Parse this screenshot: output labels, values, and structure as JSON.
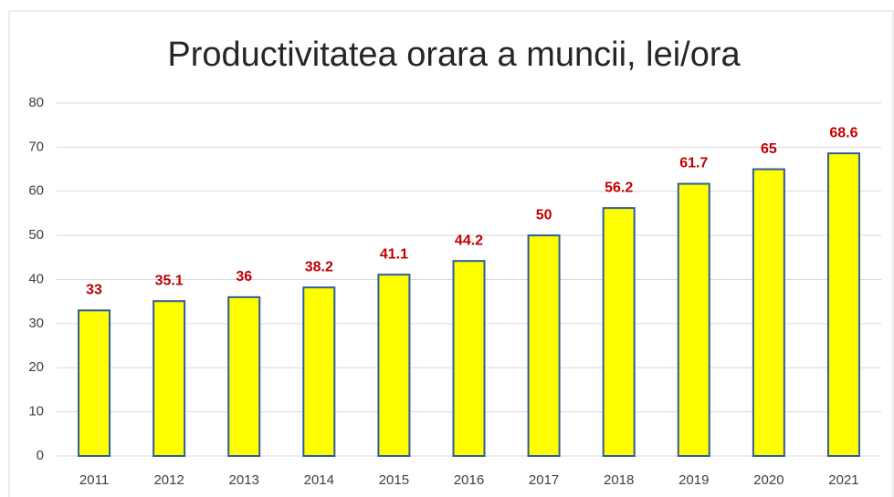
{
  "chart_data": {
    "type": "bar",
    "title": "Productivitatea orara a muncii, lei/ora",
    "categories": [
      "2011",
      "2012",
      "2013",
      "2014",
      "2015",
      "2016",
      "2017",
      "2018",
      "2019",
      "2020",
      "2021"
    ],
    "values": [
      33,
      35.1,
      36,
      38.2,
      41.1,
      44.2,
      50,
      56.2,
      61.7,
      65,
      68.6
    ],
    "color": "#ffff00",
    "edge_color": "#2e5c9a",
    "label_color": "#c00000",
    "ylim": [
      0,
      80
    ],
    "yticks": [
      0,
      10,
      20,
      30,
      40,
      50,
      60,
      70,
      80
    ],
    "grid": true
  }
}
